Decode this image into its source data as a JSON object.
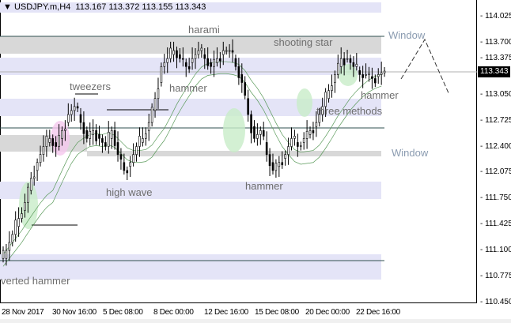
{
  "header": {
    "symbol": "USDJPY.m,H4",
    "ohlc": "113.167 113.372 113.155 113.343",
    "menu_icon": "triangle-down-icon"
  },
  "current_price": "113.343",
  "labels": {
    "harami": "harami",
    "shooting_star": "shooting star",
    "window_top": "Window",
    "hammer1": "hammer",
    "tweezers": "tweezers",
    "hammer_right": "hammer",
    "three_methods": "three methods",
    "window_mid": "Window",
    "high_wave": "high wave",
    "hammer_bottom": "hammer",
    "inverted_hammer": "verted hammer"
  },
  "chart_data": {
    "type": "candlestick",
    "ylim": [
      110.45,
      114.025
    ],
    "y_ticks": [
      "114.025",
      "113.700",
      "113.375",
      "113.050",
      "112.725",
      "112.400",
      "112.075",
      "111.750",
      "111.425",
      "111.100",
      "110.775",
      "110.450"
    ],
    "x_ticks": [
      "28 Nov 2017",
      "30 Nov 16:00",
      "5 Dec 08:00",
      "8 Dec 00:00",
      "12 Dec 16:00",
      "15 Dec 08:00",
      "20 Dec 00:00",
      "22 Dec 16:00"
    ],
    "closes": [
      111.1,
      111.3,
      111.5,
      111.7,
      112.0,
      112.2,
      112.4,
      112.5,
      112.4,
      112.6,
      112.8,
      112.9,
      112.7,
      112.5,
      112.6,
      112.5,
      112.4,
      112.6,
      112.3,
      112.1,
      112.2,
      112.4,
      112.5,
      112.7,
      113.0,
      113.4,
      113.5,
      113.6,
      113.5,
      113.4,
      113.5,
      113.6,
      113.5,
      113.4,
      113.5,
      113.6,
      113.6,
      113.4,
      113.2,
      112.8,
      112.5,
      112.6,
      112.3,
      112.1,
      112.2,
      112.3,
      112.5,
      112.4,
      112.5,
      112.6,
      112.7,
      112.9,
      113.1,
      113.3,
      113.5,
      113.5,
      113.4,
      113.3,
      113.3,
      113.25,
      113.3,
      113.343
    ],
    "colors": {
      "band_blue": "#e4e4f7",
      "band_gray": "#d8d8d8",
      "ellipse_green": "#c8ecc8",
      "ellipse_pink": "#f5c8ee",
      "ma": "#5a9a5a"
    }
  }
}
